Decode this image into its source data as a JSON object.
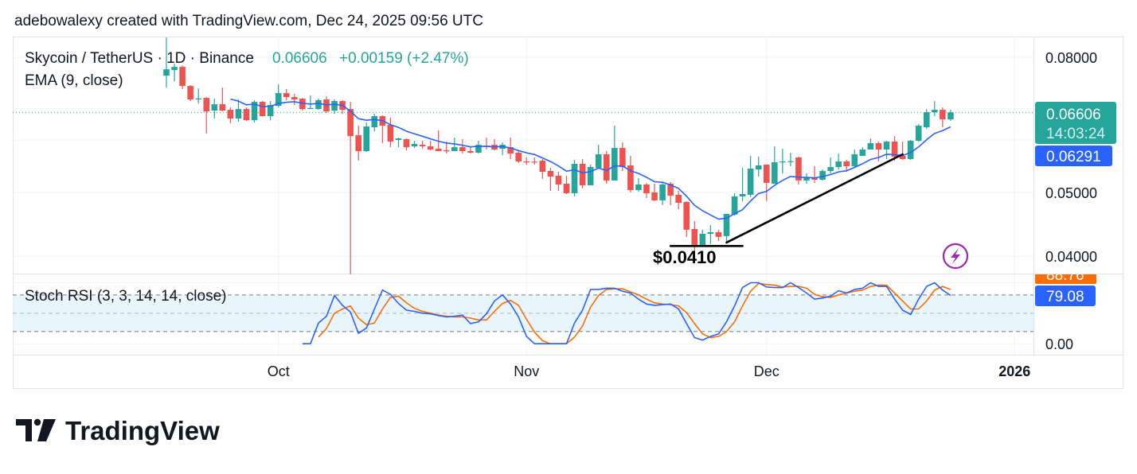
{
  "header": {
    "attribution": "adebowalexy created with TradingView.com, Dec 24, 2025 09:56 UTC"
  },
  "legend": {
    "symbol": "Skycoin / TetherUS · 1D · Binance",
    "last": "0.06606",
    "change": "+0.00159 (+2.47%)",
    "ema": "EMA (9, close)",
    "stoch": "Stoch RSI (3, 3, 14, 14, close)"
  },
  "price_axis": {
    "labels": [
      "0.08000",
      "0.05000",
      "0.04000"
    ],
    "stoch_label": "0.00"
  },
  "time_axis": {
    "labels": [
      {
        "text": "Oct",
        "date": "2025-10-01",
        "bold": false
      },
      {
        "text": "Nov",
        "date": "2025-11-01",
        "bold": false
      },
      {
        "text": "Dec",
        "date": "2025-12-01",
        "bold": false
      },
      {
        "text": "2026",
        "date": "2026-01-01",
        "bold": true
      }
    ]
  },
  "tags": {
    "last_price": "0.06606",
    "countdown": "14:03:24",
    "ema_value": "0.06291",
    "stoch_d": "88.76",
    "stoch_k": "79.08"
  },
  "annotations": {
    "low_label": "$0.0410"
  },
  "brand": {
    "name": "TradingView"
  },
  "colors": {
    "up": "#26a69a",
    "down": "#ef5350",
    "ema": "#2962ff",
    "stoch_k": "#2962ff",
    "stoch_d": "#ff6d00",
    "grid": "#f0f3fa",
    "band": "#e3f2fd",
    "lightning": "#9c27b0"
  },
  "chart_data": {
    "type": "candlestick",
    "title": "Skycoin / TetherUS · 1D · Binance",
    "yscale": "log",
    "ylim": [
      0.0377,
      0.086
    ],
    "grid_prices": [
      0.08,
      0.06,
      0.05,
      0.04
    ],
    "last_price": 0.06606,
    "candles_fields": [
      "date",
      "open",
      "high",
      "low",
      "close"
    ],
    "candles": [
      [
        "2025-09-17",
        0.07507,
        0.08572,
        0.07202,
        0.07675
      ],
      [
        "2025-09-18",
        0.07654,
        0.07825,
        0.07363,
        0.07739
      ],
      [
        "2025-09-19",
        0.07739,
        0.07782,
        0.07162,
        0.07242
      ],
      [
        "2025-09-20",
        0.07242,
        0.07262,
        0.06872,
        0.0691
      ],
      [
        "2025-09-21",
        0.06929,
        0.07182,
        0.06815,
        0.06935
      ],
      [
        "2025-09-22",
        0.06948,
        0.06967,
        0.06135,
        0.06629
      ],
      [
        "2025-09-23",
        0.06647,
        0.06929,
        0.06466,
        0.06796
      ],
      [
        "2025-09-24",
        0.06796,
        0.07202,
        0.06629,
        0.06647
      ],
      [
        "2025-09-25",
        0.06666,
        0.06721,
        0.0636,
        0.06466
      ],
      [
        "2025-09-26",
        0.06466,
        0.0691,
        0.06395,
        0.06684
      ],
      [
        "2025-09-27",
        0.06684,
        0.06721,
        0.06413,
        0.0643
      ],
      [
        "2025-09-28",
        0.0643,
        0.06891,
        0.06377,
        0.06853
      ],
      [
        "2025-09-29",
        0.06853,
        0.06872,
        0.0652,
        0.0652
      ],
      [
        "2025-09-30",
        0.0652,
        0.06872,
        0.0643,
        0.06777
      ],
      [
        "2025-10-01",
        0.06758,
        0.07282,
        0.06721,
        0.07064
      ],
      [
        "2025-10-02",
        0.07064,
        0.07162,
        0.06891,
        0.06967
      ],
      [
        "2025-10-03",
        0.06967,
        0.07045,
        0.06777,
        0.0691
      ],
      [
        "2025-10-04",
        0.06929,
        0.06948,
        0.06647,
        0.06684
      ],
      [
        "2025-10-05",
        0.06703,
        0.07006,
        0.06684,
        0.06708
      ],
      [
        "2025-10-06",
        0.06684,
        0.06929,
        0.06666,
        0.06891
      ],
      [
        "2025-10-07",
        0.0691,
        0.06986,
        0.06592,
        0.06629
      ],
      [
        "2025-10-08",
        0.06647,
        0.0691,
        0.06574,
        0.06872
      ],
      [
        "2025-10-09",
        0.06872,
        0.06891,
        0.06574,
        0.06666
      ],
      [
        "2025-10-10",
        0.06684,
        0.06853,
        0.03761,
        0.06084
      ],
      [
        "2025-10-11",
        0.06101,
        0.06307,
        0.05585,
        0.05773
      ],
      [
        "2025-10-12",
        0.05773,
        0.06377,
        0.05757,
        0.0629
      ],
      [
        "2025-10-13",
        0.06272,
        0.06574,
        0.06186,
        0.0652
      ],
      [
        "2025-10-14",
        0.0652,
        0.06538,
        0.05935,
        0.06307
      ],
      [
        "2025-10-15",
        0.06325,
        0.06484,
        0.05853,
        0.05968
      ],
      [
        "2025-10-16",
        0.06001,
        0.06051,
        0.05853,
        0.06034
      ],
      [
        "2025-10-17",
        0.06018,
        0.06034,
        0.05789,
        0.05853
      ],
      [
        "2025-10-18",
        0.0587,
        0.05984,
        0.05837,
        0.05919
      ],
      [
        "2025-10-19",
        0.05902,
        0.05984,
        0.05821,
        0.0587
      ],
      [
        "2025-10-20",
        0.0587,
        0.05984,
        0.05789,
        0.05805
      ],
      [
        "2025-10-21",
        0.05821,
        0.06203,
        0.05773,
        0.05773
      ],
      [
        "2025-10-22",
        0.05789,
        0.05968,
        0.05725,
        0.05785
      ],
      [
        "2025-10-23",
        0.05773,
        0.06051,
        0.05773,
        0.05853
      ],
      [
        "2025-10-24",
        0.05853,
        0.06018,
        0.05725,
        0.05773
      ],
      [
        "2025-10-25",
        0.05773,
        0.05853,
        0.05725,
        0.05741
      ],
      [
        "2025-10-26",
        0.05741,
        0.05984,
        0.05725,
        0.05902
      ],
      [
        "2025-10-27",
        0.05886,
        0.06051,
        0.05805,
        0.0588
      ],
      [
        "2025-10-28",
        0.05902,
        0.06018,
        0.05789,
        0.05805
      ],
      [
        "2025-10-29",
        0.05821,
        0.05951,
        0.05694,
        0.05902
      ],
      [
        "2025-10-30",
        0.05853,
        0.06051,
        0.05616,
        0.05725
      ],
      [
        "2025-10-31",
        0.05741,
        0.05773,
        0.05538,
        0.05569
      ],
      [
        "2025-11-01",
        0.05569,
        0.05647,
        0.05508,
        0.05565
      ],
      [
        "2025-11-02",
        0.05565,
        0.05647,
        0.05508,
        0.0556
      ],
      [
        "2025-11-03",
        0.05585,
        0.05616,
        0.05241,
        0.05373
      ],
      [
        "2025-11-04",
        0.05387,
        0.05447,
        0.05028,
        0.05284
      ],
      [
        "2025-11-05",
        0.05299,
        0.05373,
        0.05028,
        0.0514
      ],
      [
        "2025-11-06",
        0.05154,
        0.05299,
        0.04972,
        0.04986
      ],
      [
        "2025-11-07",
        0.04986,
        0.056,
        0.04931,
        0.05523
      ],
      [
        "2025-11-08",
        0.05523,
        0.05616,
        0.0507,
        0.05126
      ],
      [
        "2025-11-09",
        0.05126,
        0.05508,
        0.05126,
        0.05462
      ],
      [
        "2025-11-10",
        0.05447,
        0.05902,
        0.05432,
        0.0571
      ],
      [
        "2025-11-11",
        0.0571,
        0.05773,
        0.05154,
        0.05212
      ],
      [
        "2025-11-12",
        0.05212,
        0.06307,
        0.05212,
        0.05837
      ],
      [
        "2025-11-13",
        0.05837,
        0.05951,
        0.05387,
        0.05462
      ],
      [
        "2025-11-14",
        0.05493,
        0.05678,
        0.05,
        0.05042
      ],
      [
        "2025-11-15",
        0.05042,
        0.05255,
        0.05014,
        0.0514
      ],
      [
        "2025-11-16",
        0.0514,
        0.05169,
        0.04904,
        0.04986
      ],
      [
        "2025-11-17",
        0.05,
        0.05154,
        0.0485,
        0.04864
      ],
      [
        "2025-11-18",
        0.04864,
        0.05183,
        0.04784,
        0.0514
      ],
      [
        "2025-11-19",
        0.05154,
        0.05183,
        0.04784,
        0.04945
      ],
      [
        "2025-11-20",
        0.04959,
        0.05028,
        0.04718,
        0.04823
      ],
      [
        "2025-11-21",
        0.04837,
        0.0485,
        0.04283,
        0.04391
      ],
      [
        "2025-11-22",
        0.04403,
        0.04526,
        0.04052,
        0.04166
      ],
      [
        "2025-11-23",
        0.04166,
        0.04391,
        0.04166,
        0.0433
      ],
      [
        "2025-11-24",
        0.0433,
        0.04464,
        0.04178,
        0.04354
      ],
      [
        "2025-11-25",
        0.04354,
        0.04391,
        0.04224,
        0.04283
      ],
      [
        "2025-11-26",
        0.04295,
        0.0464,
        0.04212,
        0.0464
      ],
      [
        "2025-11-27",
        0.04628,
        0.04986,
        0.04615,
        0.04931
      ],
      [
        "2025-11-28",
        0.04931,
        0.05447,
        0.0485,
        0.04972
      ],
      [
        "2025-11-29",
        0.04959,
        0.05678,
        0.04918,
        0.05432
      ],
      [
        "2025-11-30",
        0.05417,
        0.05662,
        0.05284,
        0.05493
      ],
      [
        "2025-12-01",
        0.05508,
        0.05508,
        0.0485,
        0.05169
      ],
      [
        "2025-12-02",
        0.05154,
        0.0587,
        0.05154,
        0.05554
      ],
      [
        "2025-12-03",
        0.05554,
        0.05821,
        0.05343,
        0.05569
      ],
      [
        "2025-12-04",
        0.05569,
        0.05741,
        0.05478,
        0.05575
      ],
      [
        "2025-12-05",
        0.05647,
        0.05662,
        0.0514,
        0.05212
      ],
      [
        "2025-12-06",
        0.05212,
        0.05343,
        0.05154,
        0.05255
      ],
      [
        "2025-12-07",
        0.05255,
        0.05478,
        0.05169,
        0.05226
      ],
      [
        "2025-12-08",
        0.05226,
        0.05417,
        0.05212,
        0.05387
      ],
      [
        "2025-12-09",
        0.05387,
        0.05647,
        0.05343,
        0.05462
      ],
      [
        "2025-12-10",
        0.05462,
        0.05725,
        0.05417,
        0.05569
      ],
      [
        "2025-12-11",
        0.05569,
        0.056,
        0.05373,
        0.05478
      ],
      [
        "2025-12-12",
        0.05478,
        0.05805,
        0.05462,
        0.0571
      ],
      [
        "2025-12-13",
        0.05678,
        0.05853,
        0.05678,
        0.05805
      ],
      [
        "2025-12-14",
        0.05805,
        0.06034,
        0.05805,
        0.05935
      ],
      [
        "2025-12-15",
        0.05935,
        0.05968,
        0.05569,
        0.05805
      ],
      [
        "2025-12-16",
        0.05805,
        0.05984,
        0.05616,
        0.05968
      ],
      [
        "2025-12-17",
        0.05968,
        0.06084,
        0.05585,
        0.05662
      ],
      [
        "2025-12-18",
        0.05678,
        0.05968,
        0.056,
        0.05616
      ],
      [
        "2025-12-19",
        0.05616,
        0.06001,
        0.056,
        0.05984
      ],
      [
        "2025-12-20",
        0.05984,
        0.06342,
        0.05968,
        0.06307
      ],
      [
        "2025-12-21",
        0.06272,
        0.06684,
        0.06238,
        0.06611
      ],
      [
        "2025-12-22",
        0.06611,
        0.06872,
        0.0652,
        0.06666
      ],
      [
        "2025-12-23",
        0.06666,
        0.06721,
        0.06272,
        0.06447
      ],
      [
        "2025-12-24",
        0.06447,
        0.06666,
        0.06413,
        0.06606
      ]
    ],
    "ema_period": 9,
    "stoch_rsi": {
      "ylim": [
        -18,
        115
      ],
      "bands": [
        80,
        50,
        20
      ],
      "k": [
        null,
        null,
        null,
        null,
        null,
        null,
        null,
        null,
        null,
        null,
        null,
        null,
        null,
        null,
        null,
        null,
        null,
        0,
        0,
        34,
        45,
        79,
        63,
        52,
        17,
        26,
        57,
        88,
        81,
        66,
        55,
        53,
        50,
        49,
        46,
        44,
        45,
        47,
        33,
        36,
        49,
        70,
        80,
        65,
        44,
        12,
        0,
        0,
        0,
        0,
        0,
        34,
        55,
        89,
        89,
        91,
        91,
        86,
        83,
        73,
        65,
        63,
        64,
        65,
        57,
        33,
        10,
        6,
        12,
        16,
        36,
        62,
        92,
        100,
        100,
        93,
        92,
        92,
        100,
        92,
        83,
        73,
        75,
        78,
        87,
        83,
        89,
        91,
        100,
        94,
        94,
        73,
        55,
        48,
        73,
        94,
        100,
        88,
        79.08
      ],
      "d": [
        null,
        null,
        null,
        null,
        null,
        null,
        null,
        null,
        null,
        null,
        null,
        null,
        null,
        null,
        null,
        null,
        null,
        null,
        null,
        11,
        25,
        50,
        57,
        62,
        42,
        31,
        34,
        57,
        76,
        78,
        67,
        58,
        53,
        50,
        47,
        45,
        44,
        44,
        42,
        39,
        39,
        53,
        66,
        71,
        63,
        40,
        19,
        5,
        0,
        0,
        0,
        11,
        29,
        60,
        79,
        89,
        90,
        90,
        85,
        80,
        73,
        67,
        65,
        64,
        62,
        51,
        33,
        16,
        10,
        12,
        20,
        36,
        62,
        86,
        99,
        97,
        96,
        93,
        94,
        94,
        91,
        81,
        77,
        76,
        80,
        83,
        86,
        88,
        94,
        96,
        96,
        83,
        70,
        57,
        57,
        70,
        88,
        94,
        88.76
      ]
    },
    "drawings": {
      "trendline": {
        "from": [
          "2025-11-26",
          0.042
        ],
        "to": [
          "2025-12-18",
          0.0571
        ]
      },
      "support_line": {
        "from": [
          "2025-11-19",
          0.0415
        ],
        "to": [
          "2025-11-28",
          0.0415
        ]
      }
    }
  }
}
